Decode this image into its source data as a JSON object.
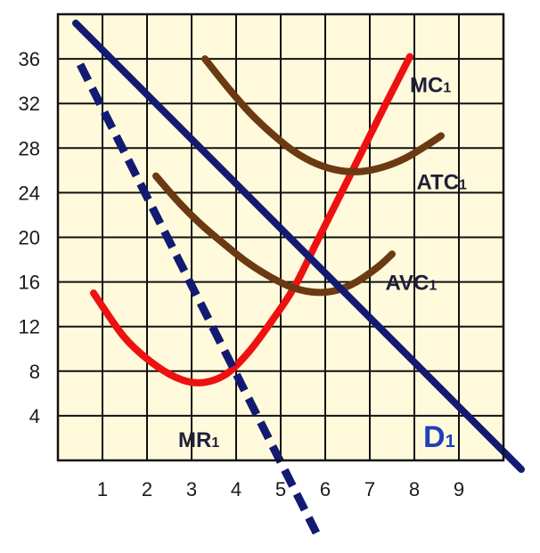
{
  "chart_data": {
    "type": "line",
    "title": "",
    "xlabel": "",
    "ylabel": "",
    "xlim": [
      0,
      10
    ],
    "ylim": [
      0,
      40
    ],
    "grid": true,
    "background": "#fffadb",
    "x_ticks": [
      "1",
      "2",
      "3",
      "4",
      "5",
      "6",
      "7",
      "8",
      "9"
    ],
    "y_ticks": [
      "4",
      "8",
      "12",
      "16",
      "20",
      "24",
      "28",
      "32",
      "36"
    ],
    "series": [
      {
        "name": "D",
        "label_main": "D",
        "label_sub": "1",
        "color": "#121a72",
        "style": "solid",
        "x": [
          0.4,
          10.4
        ],
        "y": [
          39.2,
          -0.8
        ]
      },
      {
        "name": "MR",
        "label_main": "MR",
        "label_sub": "1",
        "color": "#121a72",
        "style": "dashed",
        "x": [
          0.5,
          5.8
        ],
        "y": [
          35.5,
          -6.5
        ]
      },
      {
        "name": "MC",
        "label_main": "MC",
        "label_sub": "1",
        "color": "#ee1111",
        "style": "solid",
        "x": [
          0.8,
          1.5,
          2.2,
          2.8,
          3.3,
          3.8,
          4.3,
          4.8,
          5.3,
          5.8,
          6.3,
          6.8,
          7.3,
          7.9
        ],
        "y": [
          15,
          11,
          8.5,
          7.2,
          7.0,
          7.8,
          9.8,
          12.5,
          15.5,
          19.5,
          23.5,
          27.5,
          31.5,
          36.2
        ]
      },
      {
        "name": "ATC",
        "label_main": "ATC",
        "label_sub": "1",
        "color": "#6b3a12",
        "style": "solid",
        "x": [
          3.3,
          3.8,
          4.3,
          4.8,
          5.3,
          5.8,
          6.3,
          6.8,
          7.3,
          7.8,
          8.3,
          8.6
        ],
        "y": [
          36.0,
          33.5,
          31.2,
          29.3,
          27.7,
          26.6,
          26.0,
          25.9,
          26.3,
          27.1,
          28.3,
          29.1
        ]
      },
      {
        "name": "AVC",
        "label_main": "AVC",
        "label_sub": "1",
        "color": "#6b3a12",
        "style": "solid",
        "x": [
          2.2,
          2.7,
          3.2,
          3.7,
          4.2,
          4.7,
          5.2,
          5.7,
          6.2,
          6.7,
          7.2,
          7.5
        ],
        "y": [
          25.5,
          23.2,
          21.2,
          19.5,
          17.9,
          16.6,
          15.6,
          15.1,
          15.2,
          16.0,
          17.4,
          18.5
        ]
      }
    ]
  }
}
